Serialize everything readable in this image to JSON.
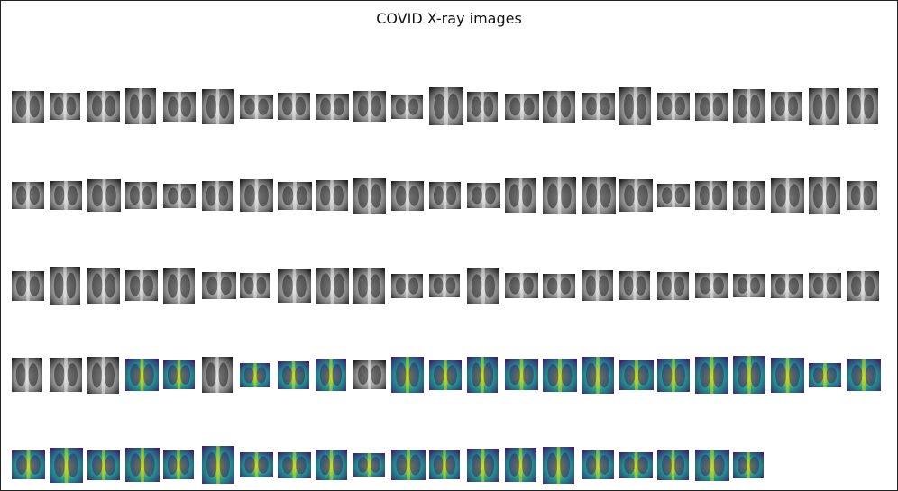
{
  "title": "COVID X-ray images",
  "thumbnail_rows": [
    {
      "images": [
        {
          "style": "gray"
        },
        {
          "style": "gray"
        },
        {
          "style": "gray"
        },
        {
          "style": "gray"
        },
        {
          "style": "gray"
        },
        {
          "style": "gray"
        },
        {
          "style": "gray"
        },
        {
          "style": "gray"
        },
        {
          "style": "gray"
        },
        {
          "style": "gray"
        },
        {
          "style": "gray"
        },
        {
          "style": "gray"
        },
        {
          "style": "gray"
        },
        {
          "style": "gray"
        },
        {
          "style": "gray"
        },
        {
          "style": "gray"
        },
        {
          "style": "gray"
        },
        {
          "style": "gray"
        },
        {
          "style": "gray"
        },
        {
          "style": "gray"
        },
        {
          "style": "gray"
        },
        {
          "style": "gray"
        },
        {
          "style": "gray"
        }
      ]
    },
    {
      "images": [
        {
          "style": "gray"
        },
        {
          "style": "gray"
        },
        {
          "style": "gray"
        },
        {
          "style": "gray"
        },
        {
          "style": "gray"
        },
        {
          "style": "gray"
        },
        {
          "style": "gray"
        },
        {
          "style": "gray"
        },
        {
          "style": "gray"
        },
        {
          "style": "gray"
        },
        {
          "style": "gray"
        },
        {
          "style": "gray"
        },
        {
          "style": "gray"
        },
        {
          "style": "gray"
        },
        {
          "style": "gray"
        },
        {
          "style": "gray"
        },
        {
          "style": "gray"
        },
        {
          "style": "gray"
        },
        {
          "style": "gray"
        },
        {
          "style": "gray"
        },
        {
          "style": "gray"
        },
        {
          "style": "gray"
        },
        {
          "style": "gray"
        }
      ]
    },
    {
      "images": [
        {
          "style": "gray"
        },
        {
          "style": "gray"
        },
        {
          "style": "gray"
        },
        {
          "style": "gray"
        },
        {
          "style": "gray"
        },
        {
          "style": "gray"
        },
        {
          "style": "gray"
        },
        {
          "style": "gray"
        },
        {
          "style": "gray"
        },
        {
          "style": "gray"
        },
        {
          "style": "gray"
        },
        {
          "style": "gray"
        },
        {
          "style": "gray"
        },
        {
          "style": "gray"
        },
        {
          "style": "gray"
        },
        {
          "style": "gray"
        },
        {
          "style": "gray"
        },
        {
          "style": "gray"
        },
        {
          "style": "gray"
        },
        {
          "style": "gray"
        },
        {
          "style": "gray"
        },
        {
          "style": "gray"
        },
        {
          "style": "gray"
        }
      ]
    },
    {
      "images": [
        {
          "style": "gray"
        },
        {
          "style": "gray"
        },
        {
          "style": "gray"
        },
        {
          "style": "viridis"
        },
        {
          "style": "viridis"
        },
        {
          "style": "gray"
        },
        {
          "style": "viridis"
        },
        {
          "style": "viridis"
        },
        {
          "style": "viridis"
        },
        {
          "style": "gray"
        },
        {
          "style": "viridis"
        },
        {
          "style": "viridis"
        },
        {
          "style": "viridis"
        },
        {
          "style": "viridis"
        },
        {
          "style": "viridis"
        },
        {
          "style": "viridis"
        },
        {
          "style": "viridis"
        },
        {
          "style": "viridis"
        },
        {
          "style": "viridis"
        },
        {
          "style": "viridis"
        },
        {
          "style": "viridis"
        },
        {
          "style": "viridis"
        },
        {
          "style": "viridis"
        }
      ]
    },
    {
      "images": [
        {
          "style": "viridis"
        },
        {
          "style": "viridis"
        },
        {
          "style": "viridis"
        },
        {
          "style": "viridis"
        },
        {
          "style": "viridis"
        },
        {
          "style": "viridis"
        },
        {
          "style": "viridis"
        },
        {
          "style": "viridis"
        },
        {
          "style": "viridis"
        },
        {
          "style": "viridis"
        },
        {
          "style": "viridis"
        },
        {
          "style": "viridis"
        },
        {
          "style": "viridis"
        },
        {
          "style": "viridis"
        },
        {
          "style": "viridis"
        },
        {
          "style": "viridis"
        },
        {
          "style": "viridis"
        },
        {
          "style": "viridis"
        },
        {
          "style": "viridis"
        },
        {
          "style": "viridis"
        }
      ]
    }
  ],
  "colors": {
    "gray_dark": "#1e1e1e",
    "gray_light": "#e8e8e8",
    "viridis_dark": "#3b1f73",
    "viridis_mid": "#21918c",
    "viridis_light": "#c8e020"
  }
}
